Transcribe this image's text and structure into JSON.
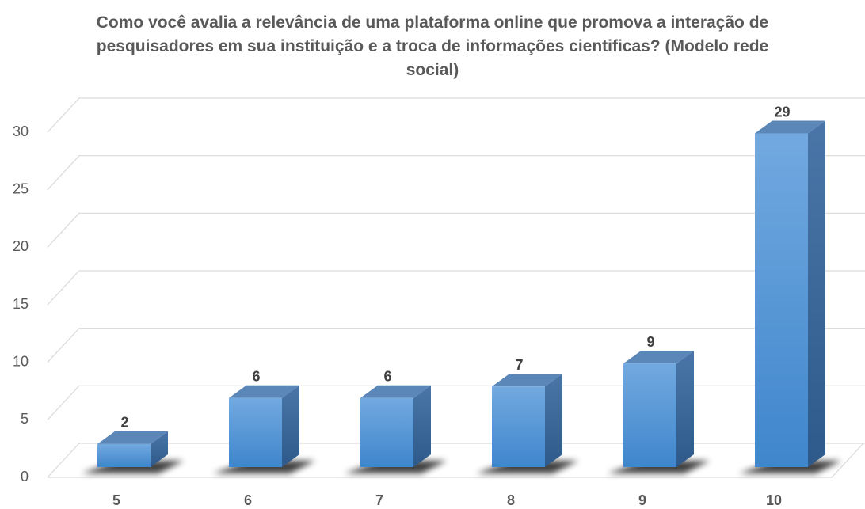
{
  "chart_data": {
    "type": "bar3d",
    "title": "Como você avalia a relevância de uma plataforma online que promova a interação de pesquisadores em sua instituição e a troca de informações cientificas? (Modelo rede social)",
    "categories": [
      "5",
      "6",
      "7",
      "8",
      "9",
      "10"
    ],
    "values": [
      2,
      6,
      6,
      7,
      9,
      29
    ],
    "color": "#5b9bd5",
    "ylim": [
      0,
      30
    ],
    "yticks": [
      0,
      5,
      10,
      15,
      20,
      25,
      30
    ],
    "grid": true
  }
}
